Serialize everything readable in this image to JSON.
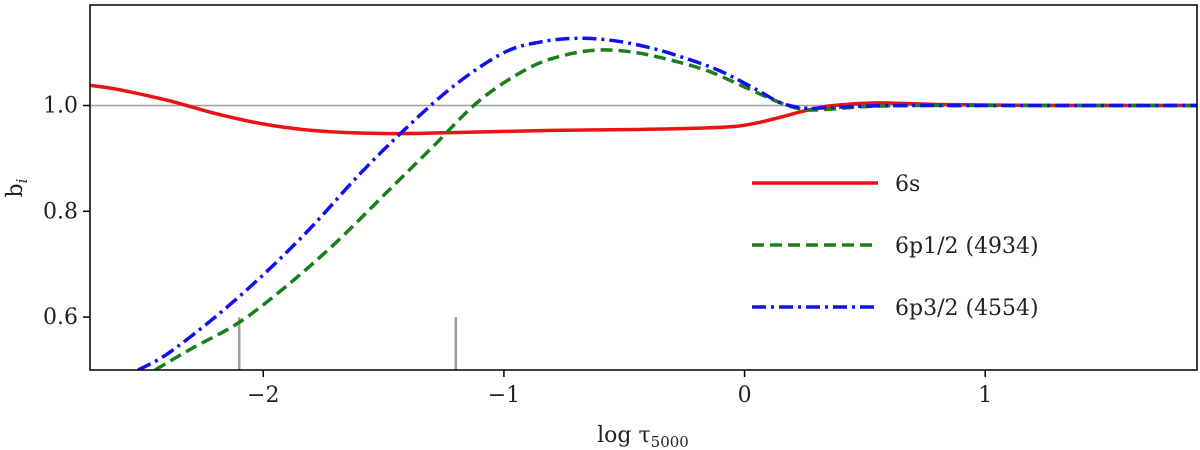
{
  "chart_data": {
    "type": "line",
    "xlabel": "log τ",
    "xlabel_sub": "5000",
    "ylabel": "b",
    "ylabel_sub": "i",
    "xlim": [
      -2.72,
      1.88
    ],
    "ylim": [
      0.5,
      1.19
    ],
    "x_ticks": [
      -2,
      -1,
      0,
      1
    ],
    "x_tick_labels": [
      "−2",
      "−1",
      "0",
      "1"
    ],
    "y_ticks": [
      0.6,
      0.8,
      1.0
    ],
    "y_tick_labels": [
      "0.6",
      "0.8",
      "1.0"
    ],
    "reference_line": {
      "y": 1.0,
      "color": "#9e9e9e"
    },
    "markers": [
      {
        "x": -2.1,
        "y_from": 0.5,
        "y_to": 0.6,
        "color": "#9e9e9e"
      },
      {
        "x": -1.2,
        "y_from": 0.5,
        "y_to": 0.6,
        "color": "#9e9e9e"
      }
    ],
    "legend_position": "right",
    "series": [
      {
        "name": "6s",
        "color": "#ee1111",
        "style": "solid",
        "x": [
          -2.72,
          -2.6,
          -2.4,
          -2.2,
          -2.0,
          -1.8,
          -1.6,
          -1.4,
          -1.2,
          -1.0,
          -0.8,
          -0.6,
          -0.4,
          -0.2,
          -0.05,
          0.05,
          0.15,
          0.25,
          0.35,
          0.45,
          0.55,
          0.65,
          0.8,
          1.0,
          1.3,
          1.6,
          1.88
        ],
        "y": [
          1.038,
          1.03,
          1.01,
          0.985,
          0.965,
          0.953,
          0.948,
          0.947,
          0.949,
          0.951,
          0.953,
          0.954,
          0.955,
          0.957,
          0.96,
          0.967,
          0.978,
          0.99,
          0.999,
          1.003,
          1.005,
          1.004,
          1.002,
          1.001,
          1.0,
          1.0,
          1.0
        ]
      },
      {
        "name": "6p1/2 (4934)",
        "color": "#1a7f1a",
        "style": "dashed",
        "x": [
          -2.45,
          -2.3,
          -2.1,
          -1.9,
          -1.7,
          -1.5,
          -1.3,
          -1.1,
          -0.9,
          -0.75,
          -0.6,
          -0.45,
          -0.3,
          -0.15,
          0.0,
          0.15,
          0.25,
          0.35,
          0.5,
          0.7,
          1.0,
          1.4,
          1.88
        ],
        "y": [
          0.5,
          0.54,
          0.59,
          0.66,
          0.74,
          0.83,
          0.92,
          1.01,
          1.07,
          1.095,
          1.105,
          1.1,
          1.085,
          1.065,
          1.035,
          1.005,
          0.992,
          0.993,
          0.998,
          1.0,
          1.0,
          1.0,
          1.0
        ]
      },
      {
        "name": "6p3/2 (4554)",
        "color": "#1111ee",
        "style": "dashdot",
        "x": [
          -2.52,
          -2.4,
          -2.2,
          -2.0,
          -1.8,
          -1.6,
          -1.4,
          -1.2,
          -1.0,
          -0.85,
          -0.7,
          -0.55,
          -0.4,
          -0.25,
          -0.1,
          0.05,
          0.15,
          0.25,
          0.35,
          0.5,
          0.7,
          1.0,
          1.4,
          1.88
        ],
        "y": [
          0.5,
          0.53,
          0.6,
          0.68,
          0.77,
          0.87,
          0.96,
          1.04,
          1.1,
          1.12,
          1.127,
          1.123,
          1.11,
          1.09,
          1.065,
          1.03,
          1.005,
          0.995,
          0.996,
          0.999,
          1.0,
          1.0,
          1.0,
          1.0
        ]
      }
    ]
  }
}
